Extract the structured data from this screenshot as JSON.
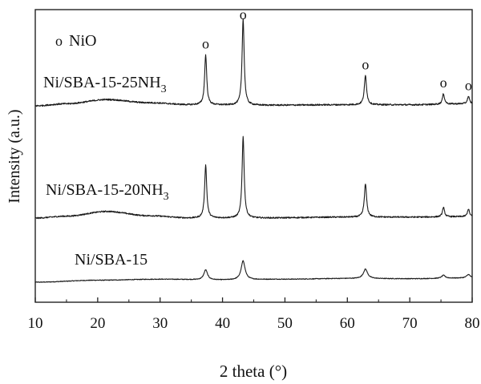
{
  "chart_data": {
    "type": "line",
    "xlabel": "2 theta (°)",
    "ylabel": "Intensity (a.u.)",
    "xlim": [
      10,
      80
    ],
    "xticks": [
      10,
      20,
      30,
      40,
      50,
      60,
      70,
      80
    ],
    "yticks": [],
    "grid": false,
    "legend": {
      "marker": "o",
      "label": "NiO",
      "placement": "top-left"
    },
    "peak_marker": "o",
    "nio_peaks": [
      37.3,
      43.3,
      62.9,
      75.4,
      79.4
    ],
    "series": [
      {
        "name": "Ni/SBA-15",
        "label_parts": [
          "Ni/SBA-15",
          ""
        ],
        "baseline": [
          [
            10,
            0.0
          ],
          [
            20,
            0.04
          ],
          [
            30,
            0.06
          ],
          [
            40,
            0.045
          ],
          [
            50,
            0.06
          ],
          [
            60,
            0.075
          ],
          [
            70,
            0.07
          ],
          [
            80,
            0.085
          ]
        ],
        "peaks": [
          [
            37.3,
            0.2,
            0.35
          ],
          [
            43.3,
            0.38,
            0.38
          ],
          [
            62.9,
            0.19,
            0.4
          ],
          [
            75.4,
            0.06,
            0.35
          ],
          [
            79.4,
            0.07,
            0.35
          ]
        ]
      },
      {
        "name": "Ni/SBA-15-20NH3",
        "label_parts": [
          "Ni/SBA-15-20NH",
          "3"
        ],
        "baseline": [
          [
            10,
            0.0
          ],
          [
            15,
            0.02
          ],
          [
            21.5,
            0.07
          ],
          [
            28,
            0.025
          ],
          [
            35,
            0.0
          ],
          [
            45,
            0.0
          ],
          [
            60,
            0.01
          ],
          [
            70,
            0.01
          ],
          [
            80,
            0.015
          ]
        ],
        "peaks": [
          [
            37.3,
            0.56,
            0.2
          ],
          [
            43.3,
            0.86,
            0.2
          ],
          [
            62.9,
            0.35,
            0.22
          ],
          [
            75.4,
            0.1,
            0.2
          ],
          [
            79.4,
            0.08,
            0.2
          ]
        ]
      },
      {
        "name": "Ni/SBA-15-25NH3",
        "label_parts": [
          "Ni/SBA-15-25NH",
          "3"
        ],
        "baseline": [
          [
            10,
            0.0
          ],
          [
            15,
            0.02
          ],
          [
            21.5,
            0.06
          ],
          [
            28,
            0.03
          ],
          [
            35,
            0.01
          ],
          [
            45,
            0.005
          ],
          [
            60,
            0.01
          ],
          [
            70,
            0.01
          ],
          [
            80,
            0.02
          ]
        ],
        "peaks": [
          [
            37.3,
            0.48,
            0.2
          ],
          [
            43.3,
            0.83,
            0.2
          ],
          [
            62.9,
            0.28,
            0.22
          ],
          [
            75.4,
            0.1,
            0.2
          ],
          [
            79.4,
            0.07,
            0.2
          ]
        ]
      }
    ]
  }
}
